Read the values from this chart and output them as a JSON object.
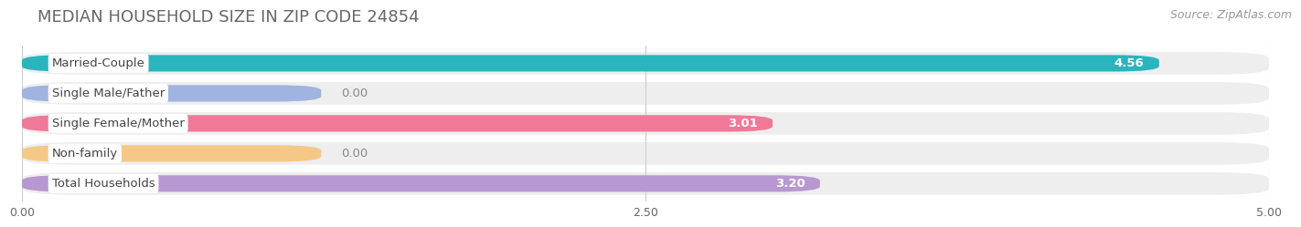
{
  "title": "MEDIAN HOUSEHOLD SIZE IN ZIP CODE 24854",
  "source": "Source: ZipAtlas.com",
  "categories": [
    "Married-Couple",
    "Single Male/Father",
    "Single Female/Mother",
    "Non-family",
    "Total Households"
  ],
  "values": [
    4.56,
    0.0,
    3.01,
    0.0,
    3.2
  ],
  "bar_colors": [
    "#29b5be",
    "#a0b4e0",
    "#f07898",
    "#f5c888",
    "#b898d0"
  ],
  "stub_values": [
    4.56,
    1.2,
    3.01,
    1.2,
    3.2
  ],
  "xlim": [
    0,
    5.0
  ],
  "xticks": [
    0.0,
    2.5,
    5.0
  ],
  "xlabel_labels": [
    "0.00",
    "2.50",
    "5.00"
  ],
  "title_fontsize": 13,
  "source_fontsize": 9,
  "bar_label_fontsize": 9.5,
  "category_fontsize": 9.5
}
